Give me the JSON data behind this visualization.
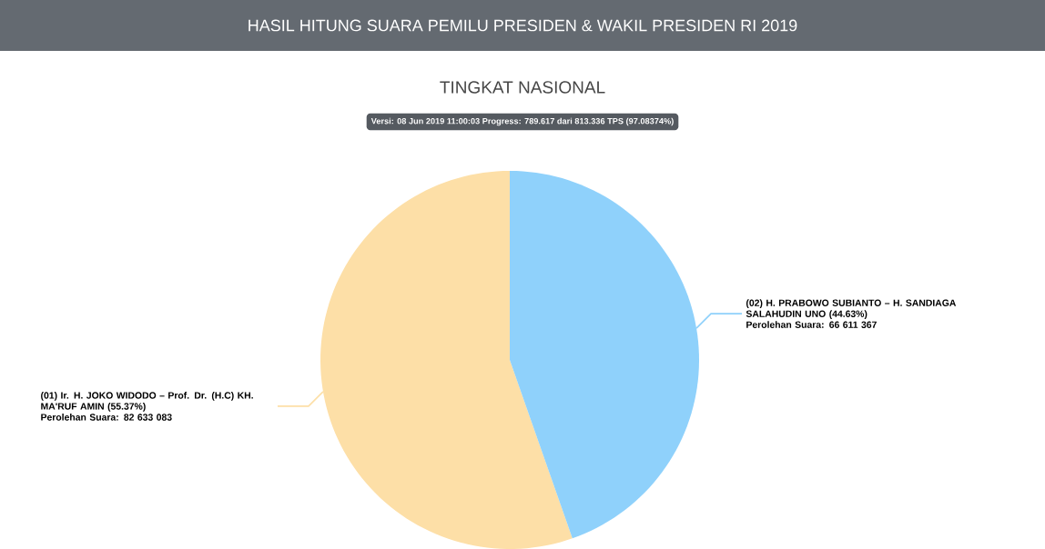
{
  "chart_data": {
    "type": "pie",
    "title": "HASIL HITUNG SUARA PEMILU PRESIDEN & WAKIL PRESIDEN RI 2019",
    "subtitle": "TINGKAT NASIONAL",
    "annotations": [
      "Versi: 08 Jun 2019 11:00:03 Progress: 789.617 dari 813.336 TPS (97.08374%)"
    ],
    "categories": [
      "(01) Ir. H. JOKO WIDODO – Prof. Dr. (H.C) KH. MA'RUF AMIN (55.37%)",
      "(02) H. PRABOWO SUBIANTO – H. SANDIAGA SALAHUDIN UNO (44.63%)"
    ],
    "values": [
      82633083,
      66611367
    ],
    "colors": [
      "#fddfa7",
      "#8fd1fb"
    ],
    "value_labels": [
      "Perolehan Suara: 82 633 083",
      "Perolehan Suara: 66 611 367"
    ]
  }
}
